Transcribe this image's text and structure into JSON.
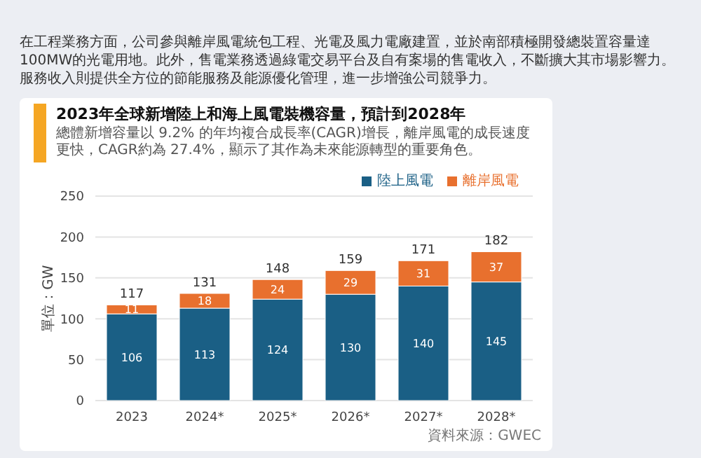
{
  "chart_data": {
    "type": "bar",
    "title": "2023年全球新增陸上和海上風電裝機容量，預計到2028年",
    "subtitle": "總體新增容量以 9.2% 的年均複合成長率(CAGR)增長，離岸風電的成長速度更快，CAGR約為 27.4%，顯示了其作為未來能源轉型的重要角色。",
    "annotations": [
      "在工程業務方面，公司參與離岸風電統包工程、光電及風力電廠建置，並於南部積極開發總裝置容量達100MW的光電用地。此外，售電業務透過綠電交易平台及自有案場的售電收入，不斷擴大其市場影響力。服務收入則提供全方位的節能服務及能源優化管理，進一步增強公司競爭力。",
      "資料來源：GWEC"
    ],
    "ylabel": "單位：GW",
    "categories": [
      "2023",
      "2024*",
      "2025*",
      "2026*",
      "2027*",
      "2028*"
    ],
    "series": [
      {
        "name": "陸上風電",
        "color": "#1a5f85",
        "values": [
          106,
          113,
          124,
          130,
          140,
          145
        ]
      },
      {
        "name": "離岸風電",
        "color": "#e8702e",
        "values": [
          11,
          18,
          24,
          29,
          31,
          37
        ]
      }
    ],
    "stacked": true,
    "data_labels": true,
    "totals": [
      "117",
      "131",
      "148",
      "159",
      "171",
      "182"
    ],
    "ylim": [
      0,
      250
    ],
    "yticks": [
      0,
      50,
      100,
      150,
      200,
      250
    ],
    "grid": "y",
    "legend": "top right"
  }
}
